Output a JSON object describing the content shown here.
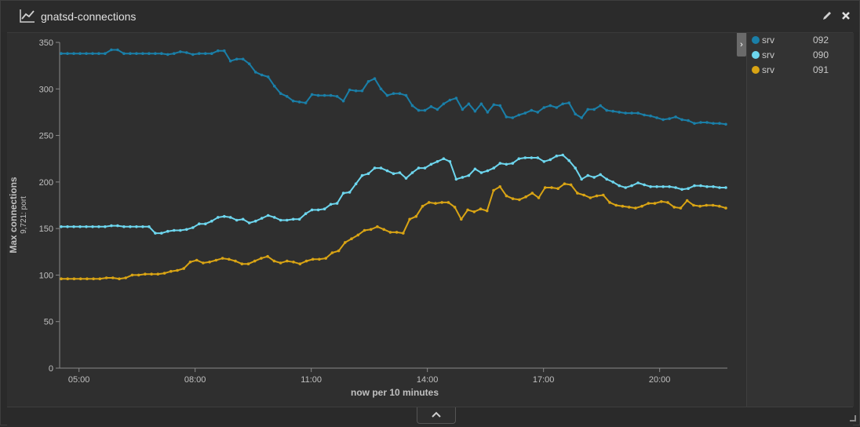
{
  "panel": {
    "title": "gnatsd-connections",
    "icon": "line-chart-icon",
    "actions": [
      "edit-icon",
      "close-icon"
    ]
  },
  "legend": {
    "items": [
      {
        "name": "srv",
        "suffix": "092",
        "color": "#1a7fa8"
      },
      {
        "name": "srv",
        "suffix": "090",
        "color": "#6dd6ee"
      },
      {
        "name": "srv",
        "suffix": "091",
        "color": "#d9a414"
      }
    ]
  },
  "chart_data": {
    "type": "line",
    "ylabel": "Max connections",
    "ylabel_sub": "9,721: port",
    "xlabel": "now per 10 minutes",
    "ylim": [
      0,
      350
    ],
    "yticks": [
      0,
      50,
      100,
      150,
      200,
      250,
      300,
      350
    ],
    "xlim_hours": [
      4.5,
      21.75
    ],
    "xticks": [
      {
        "label": "05:00",
        "h": 5
      },
      {
        "label": "08:00",
        "h": 8
      },
      {
        "label": "11:00",
        "h": 11
      },
      {
        "label": "14:00",
        "h": 14
      },
      {
        "label": "17:00",
        "h": 17
      },
      {
        "label": "20:00",
        "h": 20
      }
    ],
    "grid": false,
    "series": [
      {
        "name": "srv…092",
        "color": "#1a7fa8",
        "values": [
          338,
          338,
          338,
          338,
          338,
          338,
          338,
          338,
          342,
          342,
          338,
          338,
          338,
          338,
          338,
          338,
          338,
          337,
          338,
          340,
          339,
          337,
          338,
          338,
          338,
          341,
          341,
          330,
          332,
          332,
          327,
          318,
          315,
          313,
          303,
          295,
          292,
          287,
          286,
          285,
          294,
          293,
          293,
          293,
          292,
          287,
          299,
          298,
          298,
          308,
          311,
          300,
          293,
          295,
          295,
          293,
          282,
          277,
          277,
          281,
          278,
          284,
          288,
          290,
          278,
          284,
          276,
          284,
          275,
          283,
          282,
          270,
          269,
          272,
          274,
          277,
          275,
          280,
          282,
          280,
          284,
          285,
          273,
          269,
          278,
          278,
          282,
          277,
          276,
          275,
          274,
          274,
          274,
          272,
          271,
          269,
          267,
          268,
          270,
          267,
          266,
          263,
          264,
          264,
          263,
          263,
          262
        ]
      },
      {
        "name": "srv…090",
        "color": "#6dd6ee",
        "values": [
          152,
          152,
          152,
          152,
          152,
          152,
          152,
          152,
          153,
          153,
          152,
          152,
          152,
          152,
          152,
          145,
          145,
          147,
          148,
          148,
          149,
          151,
          155,
          155,
          158,
          162,
          163,
          162,
          159,
          160,
          156,
          158,
          161,
          164,
          162,
          159,
          159,
          160,
          160,
          166,
          170,
          170,
          171,
          176,
          177,
          188,
          189,
          198,
          207,
          209,
          215,
          215,
          212,
          209,
          210,
          204,
          210,
          215,
          215,
          219,
          222,
          225,
          222,
          203,
          205,
          207,
          214,
          210,
          212,
          215,
          220,
          219,
          220,
          225,
          226,
          226,
          226,
          222,
          224,
          228,
          229,
          223,
          215,
          203,
          207,
          205,
          208,
          203,
          200,
          196,
          194,
          196,
          199,
          197,
          195,
          195,
          195,
          195,
          194,
          192,
          193,
          196,
          196,
          195,
          195,
          194,
          194
        ]
      },
      {
        "name": "srv…091",
        "color": "#d9a414",
        "values": [
          96,
          96,
          96,
          96,
          96,
          96,
          96,
          97,
          97,
          96,
          97,
          100,
          100,
          101,
          101,
          101,
          102,
          104,
          105,
          107,
          114,
          116,
          113,
          114,
          116,
          118,
          117,
          115,
          112,
          112,
          115,
          118,
          120,
          115,
          113,
          115,
          114,
          112,
          115,
          117,
          117,
          118,
          124,
          126,
          135,
          139,
          143,
          148,
          149,
          152,
          149,
          146,
          146,
          145,
          160,
          163,
          174,
          178,
          177,
          178,
          178,
          173,
          160,
          170,
          168,
          171,
          169,
          191,
          195,
          185,
          182,
          181,
          184,
          188,
          183,
          194,
          194,
          193,
          198,
          197,
          188,
          186,
          183,
          185,
          186,
          178,
          175,
          174,
          173,
          172,
          174,
          177,
          177,
          179,
          178,
          173,
          172,
          180,
          175,
          174,
          175,
          175,
          174,
          172
        ]
      }
    ]
  }
}
